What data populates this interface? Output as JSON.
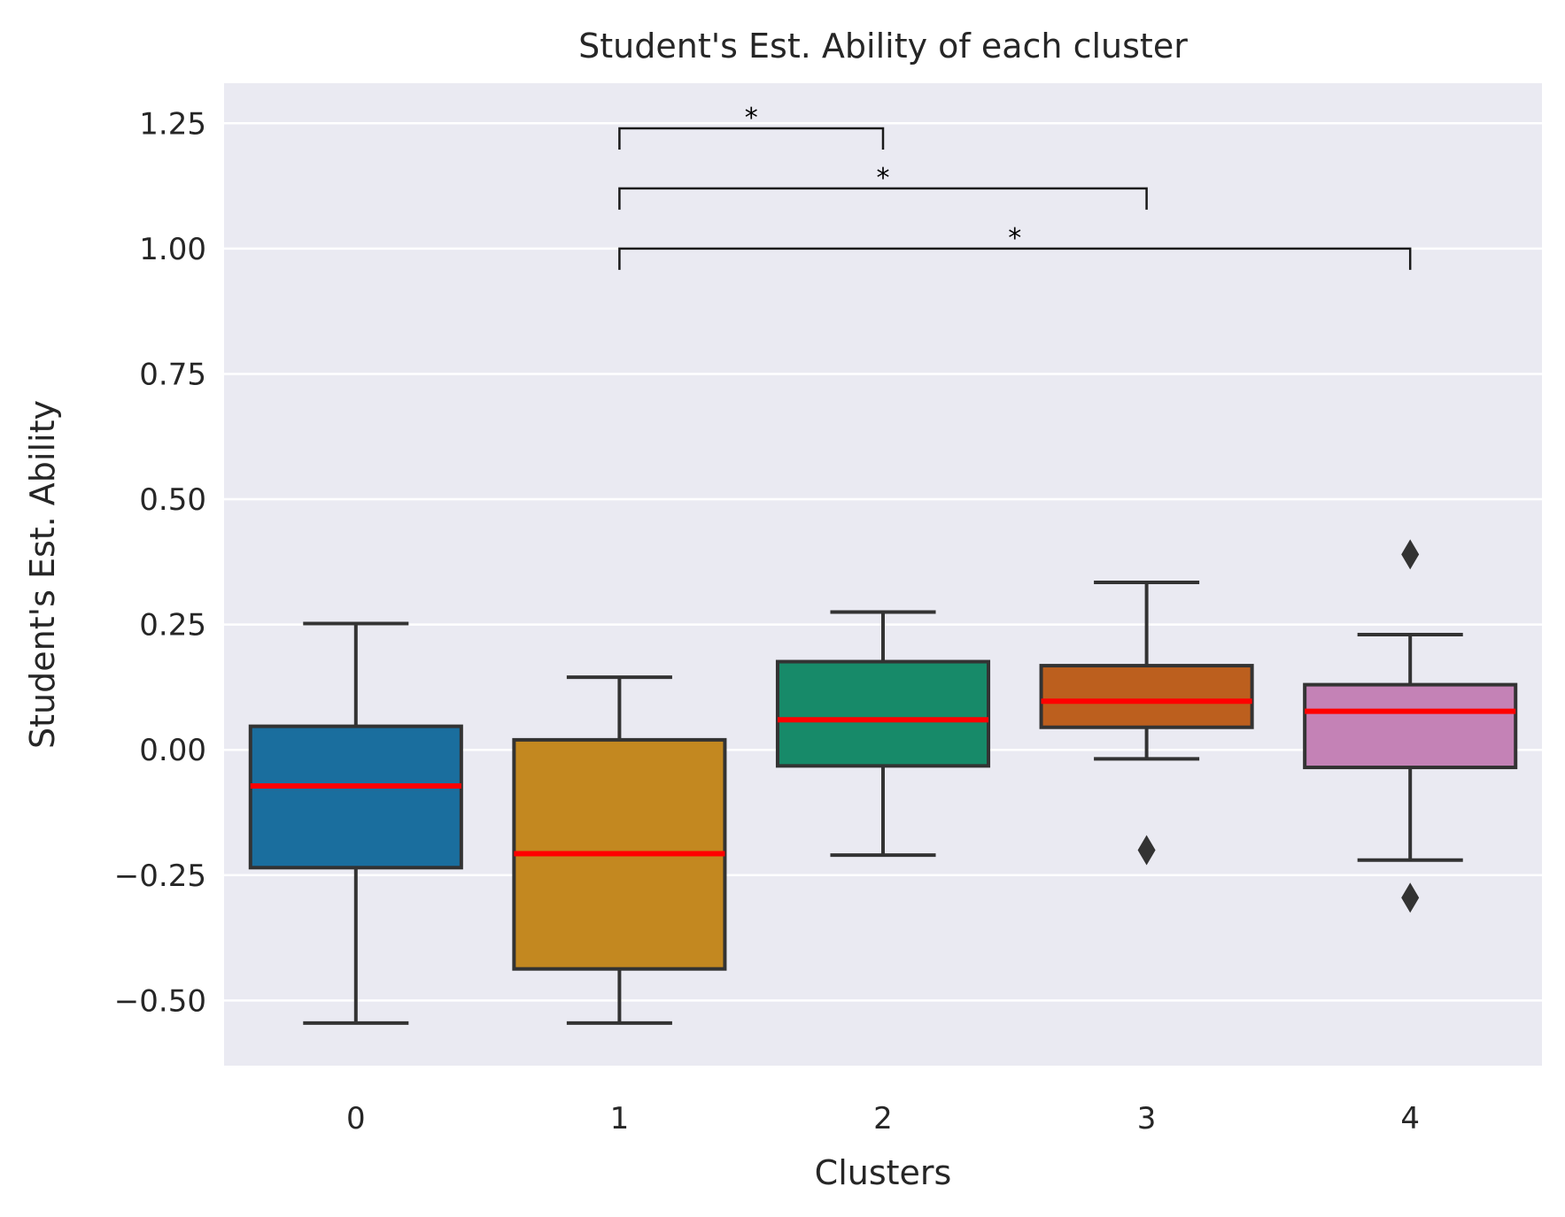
{
  "chart_data": {
    "type": "box",
    "title": "Student's Est. Ability of each cluster",
    "xlabel": "Clusters",
    "ylabel": "Student's Est. Ability",
    "categories": [
      "0",
      "1",
      "2",
      "3",
      "4"
    ],
    "ylim": [
      -0.63,
      1.33
    ],
    "yticks": [
      -0.5,
      -0.25,
      0.0,
      0.25,
      0.5,
      0.75,
      1.0,
      1.25
    ],
    "ytick_labels": [
      "−0.50",
      "−0.25",
      "0.00",
      "0.25",
      "0.50",
      "0.75",
      "1.00",
      "1.25"
    ],
    "grid": true,
    "median_color": "#ff0000",
    "background_color": "#eaeaf2",
    "boxes": [
      {
        "category": "0",
        "whisker_low": -0.545,
        "q1": -0.235,
        "median": -0.072,
        "q3": 0.047,
        "whisker_high": 0.252,
        "outliers": [],
        "color": "#1a6e9e"
      },
      {
        "category": "1",
        "whisker_low": -0.545,
        "q1": -0.437,
        "median": -0.207,
        "q3": 0.02,
        "whisker_high": 0.145,
        "outliers": [],
        "color": "#c38820"
      },
      {
        "category": "2",
        "whisker_low": -0.21,
        "q1": -0.032,
        "median": 0.06,
        "q3": 0.176,
        "whisker_high": 0.275,
        "outliers": [],
        "color": "#178a69"
      },
      {
        "category": "3",
        "whisker_low": -0.018,
        "q1": 0.045,
        "median": 0.097,
        "q3": 0.168,
        "whisker_high": 0.334,
        "outliers": [
          -0.2
        ],
        "color": "#bc5f1e"
      },
      {
        "category": "4",
        "whisker_low": -0.22,
        "q1": -0.035,
        "median": 0.077,
        "q3": 0.13,
        "whisker_high": 0.23,
        "outliers": [
          -0.295,
          0.39
        ],
        "color": "#c482b6"
      }
    ],
    "annotations": [
      {
        "from": "1",
        "to": "2",
        "y": 1.24,
        "label": "*"
      },
      {
        "from": "1",
        "to": "3",
        "y": 1.12,
        "label": "*"
      },
      {
        "from": "1",
        "to": "4",
        "y": 1.0,
        "label": "*"
      }
    ]
  }
}
